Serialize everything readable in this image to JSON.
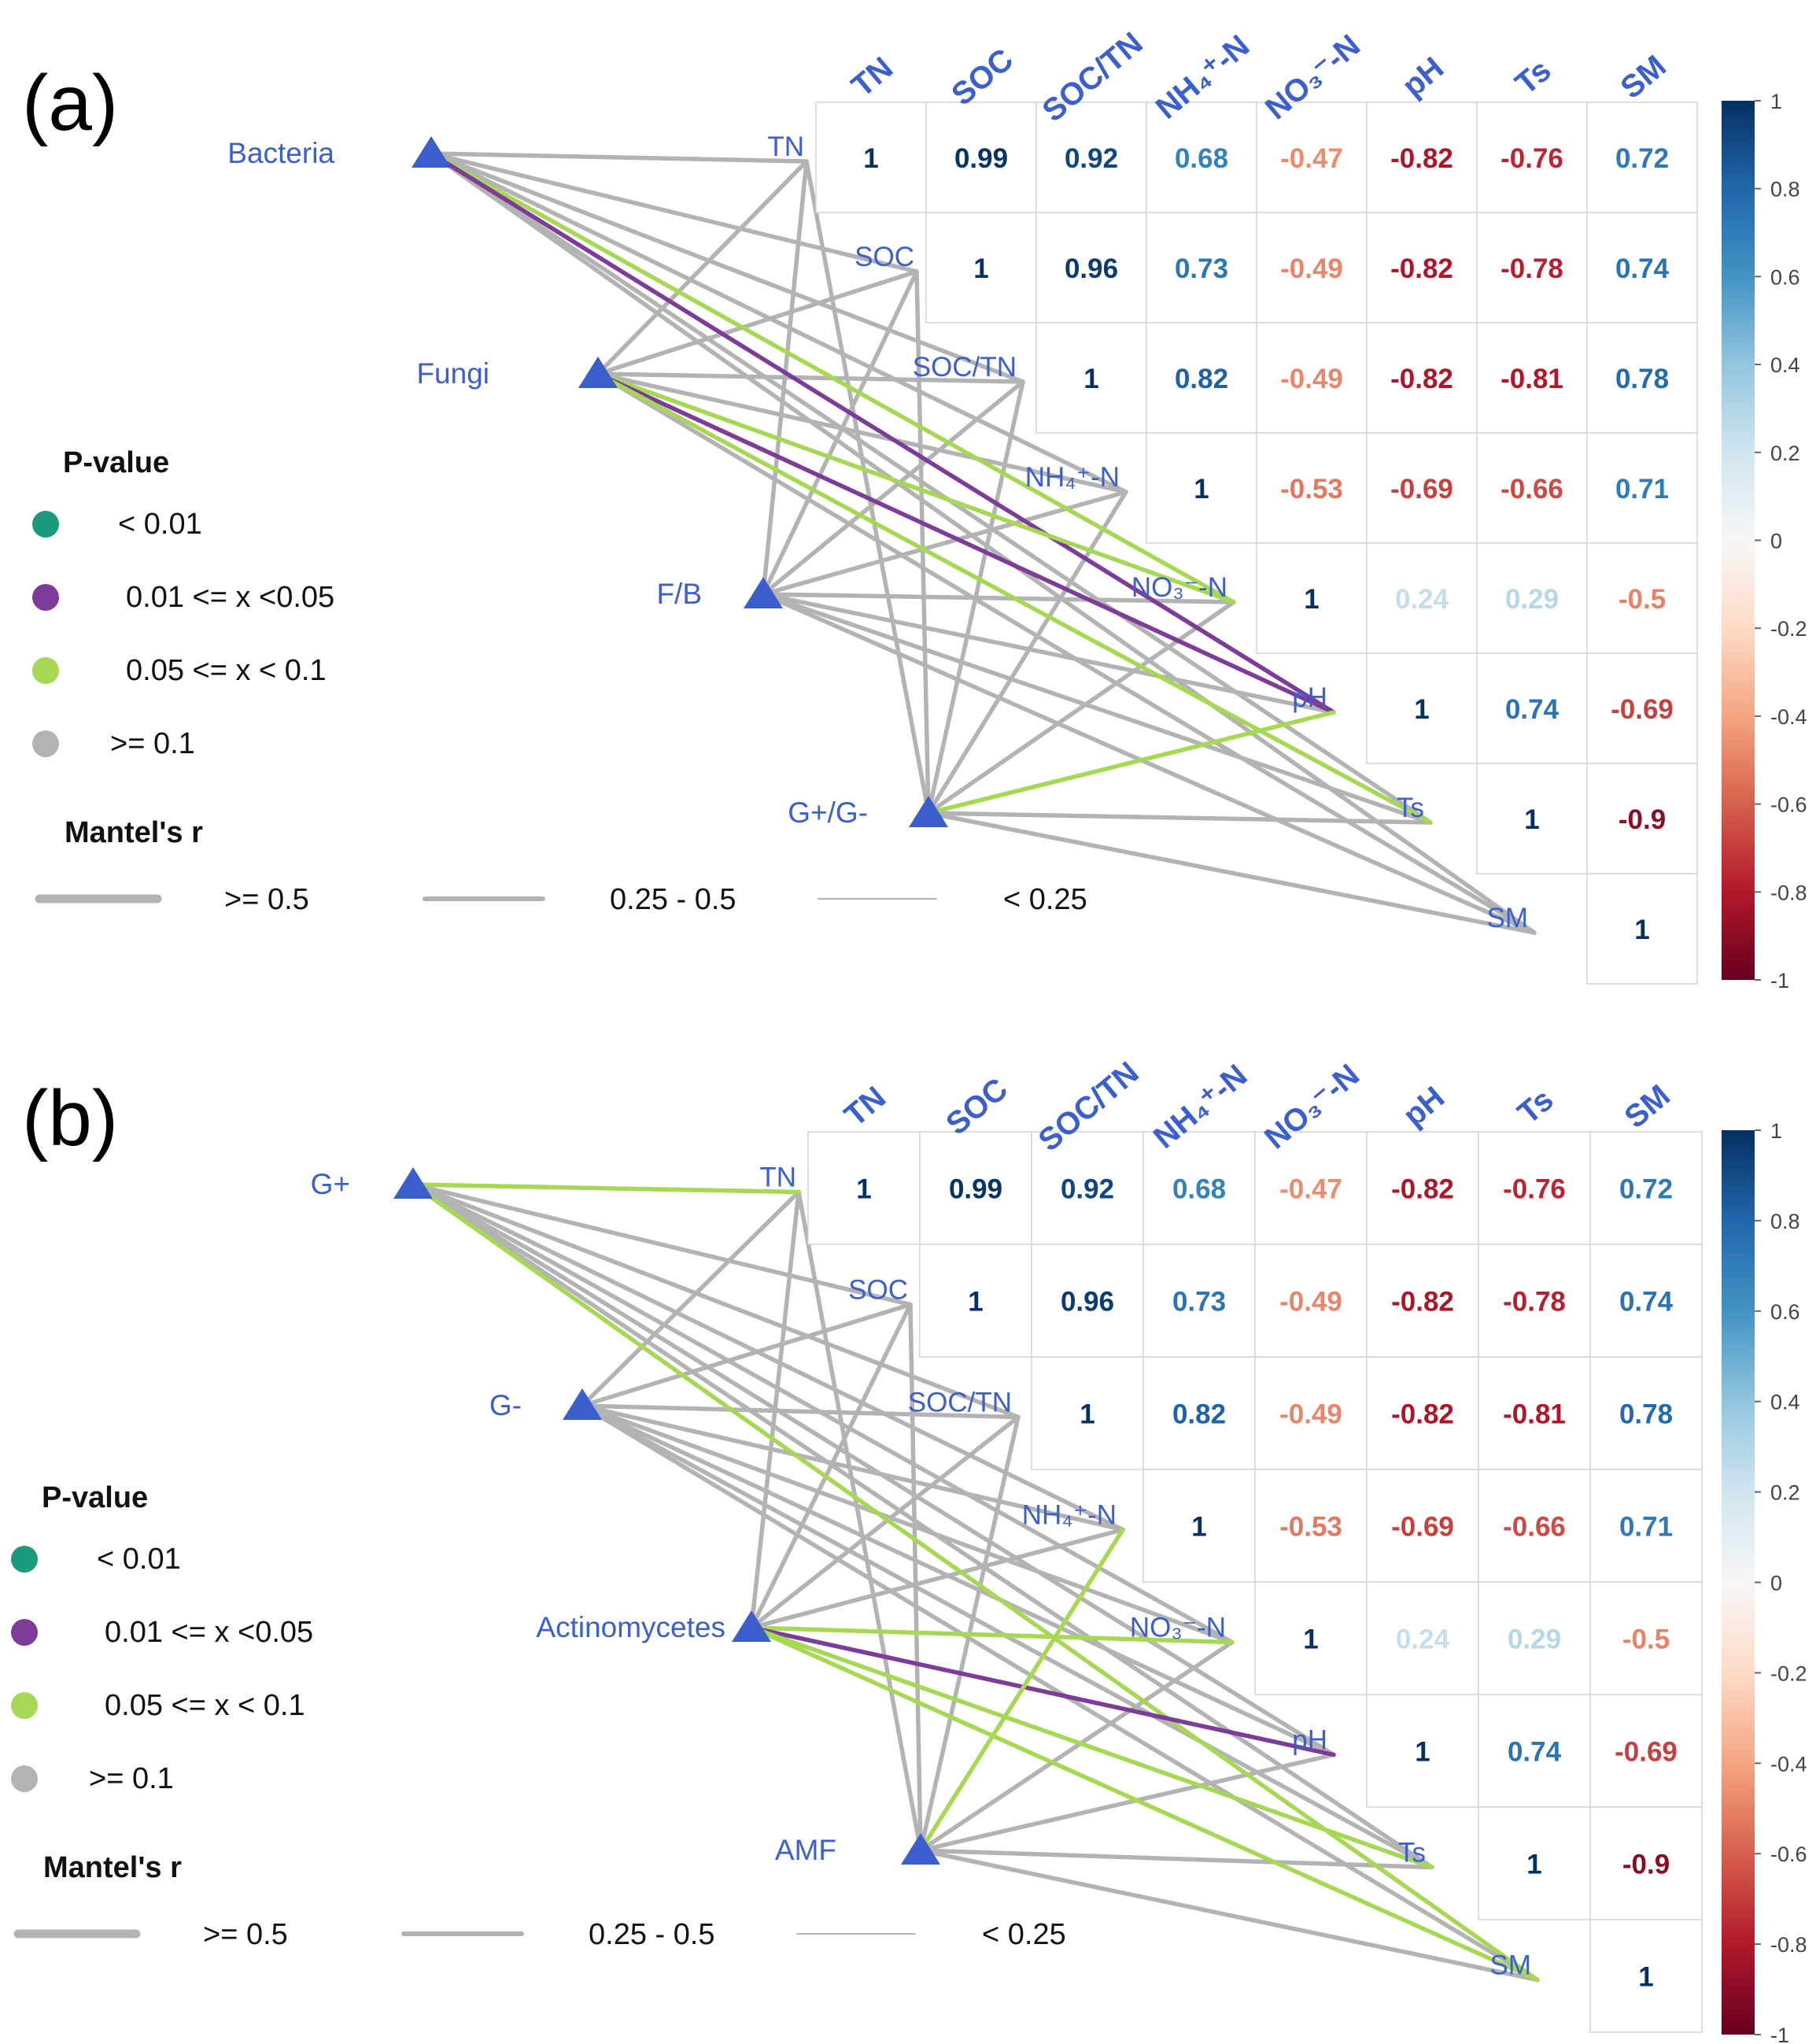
{
  "chart_data": [
    {
      "type": "mantel-correlation",
      "panel_label": "(a)",
      "variables": [
        "TN",
        "SOC",
        "SOC/TN",
        "NH4+-N",
        "NO3--N",
        "pH",
        "Ts",
        "SM"
      ],
      "row_labels": [
        "TN",
        "SOC",
        "SOC/TN",
        "NH₄⁺-N",
        "NO₃⁻-N",
        "pH",
        "Ts",
        "SM"
      ],
      "column_labels": [
        "TN",
        "SOC",
        "SOC/TN",
        "NH₄⁺-N",
        "NO₃⁻-N",
        "pH",
        "Ts",
        "SM"
      ],
      "correlation_matrix": [
        [
          "1",
          "0.99",
          "0.92",
          "0.68",
          "-0.47",
          "-0.82",
          "-0.76",
          "0.72"
        ],
        [
          null,
          "1",
          "0.96",
          "0.73",
          "-0.49",
          "-0.82",
          "-0.78",
          "0.74"
        ],
        [
          null,
          null,
          "1",
          "0.82",
          "-0.49",
          "-0.82",
          "-0.81",
          "0.78"
        ],
        [
          null,
          null,
          null,
          "1",
          "-0.53",
          "-0.69",
          "-0.66",
          "0.71"
        ],
        [
          null,
          null,
          null,
          null,
          "1",
          "0.24",
          "0.29",
          "-0.5"
        ],
        [
          null,
          null,
          null,
          null,
          null,
          "1",
          "0.74",
          "-0.69"
        ],
        [
          null,
          null,
          null,
          null,
          null,
          null,
          "1",
          "-0.9"
        ],
        [
          null,
          null,
          null,
          null,
          null,
          null,
          null,
          "1"
        ]
      ],
      "groups": [
        "Bacteria",
        "Fungi",
        "F/B",
        "G+/G-"
      ],
      "highlighted_links": [
        {
          "from": "Bacteria",
          "to": "pH",
          "p_class": "0.01 <= x <0.05"
        },
        {
          "from": "Bacteria",
          "to": "NO3--N",
          "p_class": "0.05 <= x < 0.1"
        },
        {
          "from": "Fungi",
          "to": "pH",
          "p_class": "0.01 <= x <0.05"
        },
        {
          "from": "Fungi",
          "to": "NO3--N",
          "p_class": "0.05 <= x < 0.1"
        },
        {
          "from": "Fungi",
          "to": "Ts",
          "p_class": "0.05 <= x < 0.1"
        },
        {
          "from": "G+/G-",
          "to": "pH",
          "p_class": "0.05 <= x < 0.1"
        }
      ],
      "other_links_p_class": ">= 0.1"
    },
    {
      "type": "mantel-correlation",
      "panel_label": "(b)",
      "variables": [
        "TN",
        "SOC",
        "SOC/TN",
        "NH4+-N",
        "NO3--N",
        "pH",
        "Ts",
        "SM"
      ],
      "row_labels": [
        "TN",
        "SOC",
        "SOC/TN",
        "NH₄⁺-N",
        "NO₃⁻-N",
        "pH",
        "Ts",
        "SM"
      ],
      "column_labels": [
        "TN",
        "SOC",
        "SOC/TN",
        "NH₄⁺-N",
        "NO₃⁻-N",
        "pH",
        "Ts",
        "SM"
      ],
      "correlation_matrix": [
        [
          "1",
          "0.99",
          "0.92",
          "0.68",
          "-0.47",
          "-0.82",
          "-0.76",
          "0.72"
        ],
        [
          null,
          "1",
          "0.96",
          "0.73",
          "-0.49",
          "-0.82",
          "-0.78",
          "0.74"
        ],
        [
          null,
          null,
          "1",
          "0.82",
          "-0.49",
          "-0.82",
          "-0.81",
          "0.78"
        ],
        [
          null,
          null,
          null,
          "1",
          "-0.53",
          "-0.69",
          "-0.66",
          "0.71"
        ],
        [
          null,
          null,
          null,
          null,
          "1",
          "0.24",
          "0.29",
          "-0.5"
        ],
        [
          null,
          null,
          null,
          null,
          null,
          "1",
          "0.74",
          "-0.69"
        ],
        [
          null,
          null,
          null,
          null,
          null,
          null,
          "1",
          "-0.9"
        ],
        [
          null,
          null,
          null,
          null,
          null,
          null,
          null,
          "1"
        ]
      ],
      "groups": [
        "G+",
        "G-",
        "Actinomycetes",
        "AMF"
      ],
      "highlighted_links": [
        {
          "from": "G+",
          "to": "TN",
          "p_class": "0.05 <= x < 0.1"
        },
        {
          "from": "G+",
          "to": "SM",
          "p_class": "0.05 <= x < 0.1"
        },
        {
          "from": "Actinomycetes",
          "to": "pH",
          "p_class": "0.01 <= x <0.05"
        },
        {
          "from": "Actinomycetes",
          "to": "NO3--N",
          "p_class": "0.05 <= x < 0.1"
        },
        {
          "from": "Actinomycetes",
          "to": "Ts",
          "p_class": "0.05 <= x < 0.1"
        },
        {
          "from": "Actinomycetes",
          "to": "SM",
          "p_class": "0.05 <= x < 0.1"
        },
        {
          "from": "AMF",
          "to": "NH4+-N",
          "p_class": "0.05 <= x < 0.1"
        }
      ],
      "other_links_p_class": ">= 0.1"
    }
  ],
  "legend": {
    "pvalue_title": "P-value",
    "pvalue_items": [
      {
        "label": "< 0.01",
        "color": "#1a9a7f"
      },
      {
        "label": "0.01 <= x <0.05",
        "color": "#7d3c98"
      },
      {
        "label": "0.05 <= x < 0.1",
        "color": "#a6d854"
      },
      {
        "label": ">= 0.1",
        "color": "#b3b3b3"
      }
    ],
    "mantel_title": "Mantel's r",
    "mantel_items": [
      {
        "label": ">= 0.5"
      },
      {
        "label": "0.25 - 0.5"
      },
      {
        "label": "< 0.25"
      }
    ]
  },
  "colorbar": {
    "ticks": [
      "1",
      "0.8",
      "0.6",
      "0.4",
      "0.2",
      "0",
      "-0.2",
      "-0.4",
      "-0.6",
      "-0.8",
      "-1"
    ],
    "range": [
      -1,
      1
    ],
    "low_color": "#67001f",
    "high_color": "#053061"
  }
}
